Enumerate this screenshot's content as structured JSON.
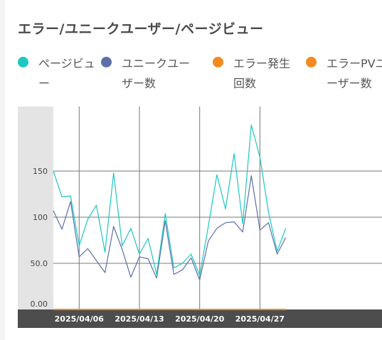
{
  "title": "エラー/ユニークユーザー/ページビュー",
  "legend": [
    {
      "label": "ページビュー",
      "color": "#1cc8c0"
    },
    {
      "label": "ユニークユーザー数",
      "color": "#5c6fa8"
    },
    {
      "label": "エラー発生回数",
      "color": "#f4891f"
    },
    {
      "label": "エラーPVユーザー数",
      "color": "#f4891f"
    }
  ],
  "chart_data": {
    "type": "line",
    "x": [
      "2025/04/03",
      "2025/04/04",
      "2025/04/05",
      "2025/04/06",
      "2025/04/07",
      "2025/04/08",
      "2025/04/09",
      "2025/04/10",
      "2025/04/11",
      "2025/04/12",
      "2025/04/13",
      "2025/04/14",
      "2025/04/15",
      "2025/04/16",
      "2025/04/17",
      "2025/04/18",
      "2025/04/19",
      "2025/04/20",
      "2025/04/21",
      "2025/04/22",
      "2025/04/23",
      "2025/04/24",
      "2025/04/25",
      "2025/04/26",
      "2025/04/27",
      "2025/04/28",
      "2025/04/29",
      "2025/04/30"
    ],
    "series": [
      {
        "name": "ページビュー",
        "color": "#1cc8c0",
        "values": [
          150,
          122,
          123,
          69,
          98,
          113,
          62,
          148,
          69,
          88,
          60,
          77,
          38,
          104,
          45,
          50,
          60,
          37,
          90,
          146,
          109,
          169,
          93,
          200,
          165,
          105,
          63,
          88
        ]
      },
      {
        "name": "ユニークユーザー数",
        "color": "#5c6fa8",
        "values": [
          107,
          87,
          117,
          57,
          66,
          53,
          40,
          90,
          65,
          35,
          57,
          55,
          34,
          96,
          38,
          43,
          56,
          32,
          74,
          88,
          94,
          95,
          84,
          145,
          86,
          94,
          60,
          78
        ]
      },
      {
        "name": "エラー発生回数",
        "color": "#f4891f",
        "values": [
          0,
          0,
          0,
          0,
          0,
          0,
          0,
          0,
          0,
          0,
          0,
          0,
          0,
          0,
          0,
          0,
          0,
          0,
          0,
          0,
          0,
          0,
          0,
          0,
          0,
          0,
          0,
          0
        ]
      },
      {
        "name": "エラーPVユーザー数",
        "color": "#f4891f",
        "values": [
          0,
          0,
          0,
          0,
          0,
          0,
          0,
          0,
          0,
          0,
          0,
          0,
          0,
          0,
          0,
          0,
          0,
          0,
          0,
          0,
          0,
          0,
          0,
          0,
          0,
          0,
          0,
          0
        ]
      }
    ],
    "x_tick_labels": [
      "2025/04/06",
      "2025/04/13",
      "2025/04/20",
      "2025/04/27"
    ],
    "y_tick_labels": [
      "0.00",
      "50.0",
      "100",
      "150"
    ],
    "y_ticks": [
      0,
      50,
      100,
      150
    ],
    "ylim": [
      0,
      220
    ],
    "grid": true
  }
}
